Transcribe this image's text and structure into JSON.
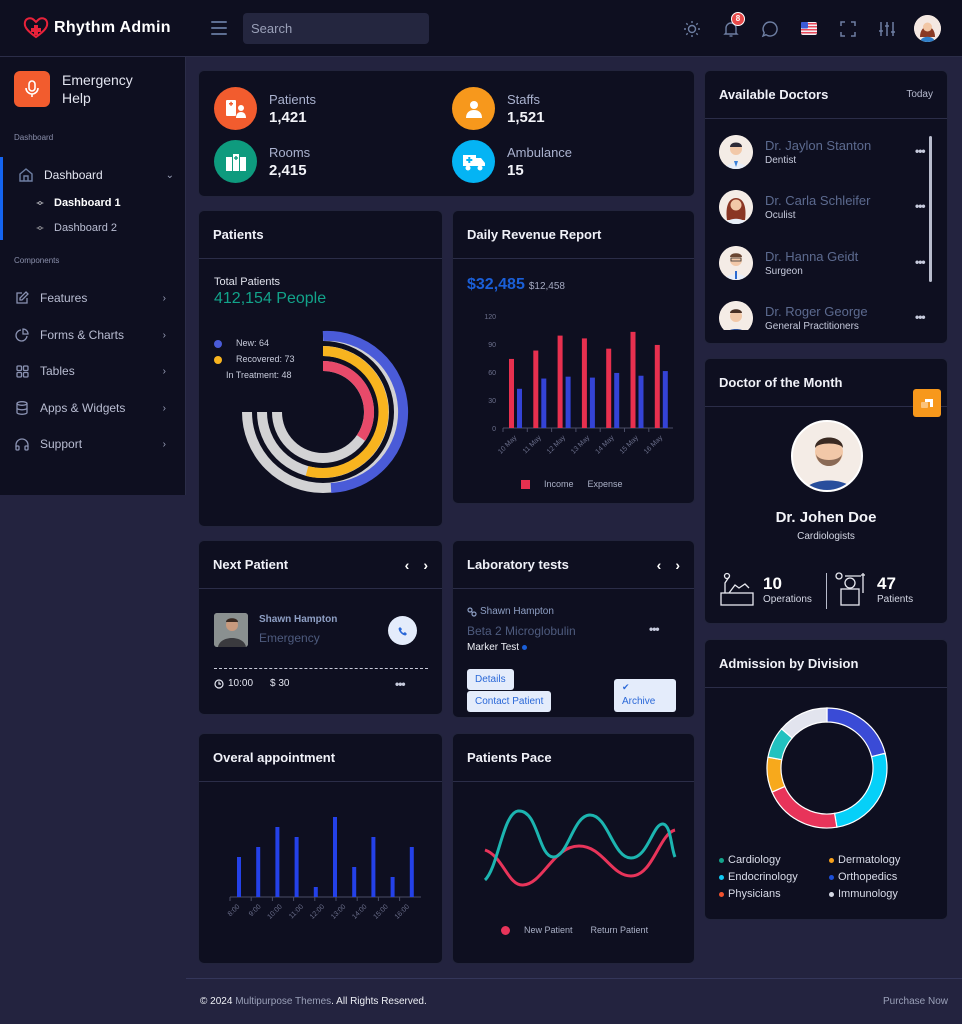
{
  "header": {
    "app_title": "Rhythm Admin",
    "search_placeholder": "Search",
    "notification_count": "8",
    "icons": [
      "sun-icon",
      "bell-icon",
      "chat-icon",
      "us-flag-icon",
      "fullscreen-icon",
      "sliders-icon",
      "user-avatar"
    ]
  },
  "sidebar": {
    "emergency_label": "Emergency Help",
    "emergency_line1": "Emergency",
    "emergency_line2": "Help",
    "section_dashboard": "Dashboard",
    "section_components": "Components",
    "dashboard_label": "Dashboard",
    "sub_items": [
      "Dashboard 1",
      "Dashboard 2"
    ],
    "items": [
      {
        "label": "Features",
        "icon": "edit-icon"
      },
      {
        "label": "Forms & Charts",
        "icon": "pie-chart-icon"
      },
      {
        "label": "Tables",
        "icon": "grid-icon"
      },
      {
        "label": "Apps & Widgets",
        "icon": "database-icon"
      },
      {
        "label": "Support",
        "icon": "headphones-icon"
      }
    ]
  },
  "stats": [
    {
      "label": "Patients",
      "value": "1,421",
      "color": "#f25c2e"
    },
    {
      "label": "Staffs",
      "value": "1,521",
      "color": "#f7981c"
    },
    {
      "label": "Rooms",
      "value": "2,415",
      "color": "#0e9b7e"
    },
    {
      "label": "Ambulance",
      "value": "15",
      "color": "#04b4f4"
    }
  ],
  "patients_card": {
    "title": "Patients",
    "total_label": "Total Patients",
    "total_value": "412,154 People",
    "legend": [
      {
        "label": "New: 64",
        "color": "#4a5bd8"
      },
      {
        "label": "Recovered: 73",
        "color": "#f8b41f"
      },
      {
        "label": "In Treatment: 48",
        "color": "#e84a6a"
      }
    ]
  },
  "revenue_card": {
    "title": "Daily Revenue Report",
    "main_value": "$32,485",
    "sub_value": "$12,458",
    "legend_income": "Income",
    "legend_expense": "Expense"
  },
  "doctors_card": {
    "title": "Available Doctors",
    "filter": "Today",
    "doctors": [
      {
        "name": "Dr. Jaylon Stanton",
        "role": "Dentist"
      },
      {
        "name": "Dr. Carla Schleifer",
        "role": "Oculist"
      },
      {
        "name": "Dr. Hanna Geidt",
        "role": "Surgeon"
      },
      {
        "name": "Dr. Roger George",
        "role": "General Practitioners"
      }
    ]
  },
  "doctor_month": {
    "title": "Doctor of the Month",
    "name": "Dr. Johen Doe",
    "specialty": "Cardiologists",
    "operations_value": "10",
    "operations_label": "Operations",
    "patients_value": "47",
    "patients_label": "Patients"
  },
  "next_patient": {
    "title": "Next Patient",
    "name": "Shawn Hampton",
    "type": "Emergency",
    "time": "10:00",
    "price": "$ 30"
  },
  "lab_tests": {
    "title": "Laboratory tests",
    "patient": "Shawn Hampton",
    "test_name": "Beta 2 Microglobulin",
    "test_type": "Marker Test",
    "btn_details": "Details",
    "btn_contact": "Contact Patient",
    "btn_archive": "Archive"
  },
  "appointment_card": {
    "title": "Overal appointment"
  },
  "pace_card": {
    "title": "Patients Pace",
    "legend_new": "New Patient",
    "legend_return": "Return Patient"
  },
  "admission_card": {
    "title": "Admission by Division",
    "legend": [
      {
        "label": "Cardiology",
        "color": "#14a38b"
      },
      {
        "label": "Dermatology",
        "color": "#f7a11c"
      },
      {
        "label": "Endocrinology",
        "color": "#10c8f2"
      },
      {
        "label": "Orthopedics",
        "color": "#1c4fd8"
      },
      {
        "label": "Physicians",
        "color": "#f2522e"
      },
      {
        "label": "Immunology",
        "color": "#d5d8e4"
      }
    ]
  },
  "footer": {
    "copyright_prefix": "© 2024",
    "company": "Multipurpose Themes",
    "rights": ". All Rights Reserved.",
    "purchase": "Purchase Now"
  },
  "chart_data": [
    {
      "type": "bar",
      "title": "Daily Revenue Report",
      "categories": [
        "10 May",
        "11 May",
        "12 May",
        "13 May",
        "14 May",
        "15 May",
        "16 May"
      ],
      "series": [
        {
          "name": "Income",
          "values": [
            74,
            83,
            99,
            96,
            85,
            103,
            89
          ],
          "color": "#e8304f"
        },
        {
          "name": "Expense",
          "values": [
            42,
            53,
            55,
            54,
            59,
            56,
            61
          ],
          "color": "#3443d6"
        }
      ],
      "ylim": [
        0,
        120
      ],
      "yticks": [
        0,
        30,
        60,
        90,
        120
      ],
      "legend_position": "bottom"
    },
    {
      "type": "bar",
      "title": "Overal appointment",
      "categories": [
        "8:00",
        "9:00",
        "10:00",
        "11:00",
        "12:00",
        "13:00",
        "14:00",
        "15:00",
        "16:00"
      ],
      "values": [
        40,
        50,
        70,
        60,
        10,
        80,
        30,
        60,
        20,
        50
      ],
      "note": "10 bars across 9 tick labels",
      "color": "#2441e8"
    },
    {
      "type": "pie",
      "title": "Admission by Division",
      "categories": [
        "Orthopedics",
        "Endocrinology",
        "Physicians",
        "Dermatology",
        "Cardiology",
        "Immunology"
      ],
      "values": [
        20,
        25,
        20,
        9,
        8,
        13
      ],
      "colors": [
        "#3a4bd6",
        "#06d0f8",
        "#e8345a",
        "#f7a91c",
        "#22c2c0",
        "#e2e4ee"
      ]
    },
    {
      "type": "pie",
      "title": "Patients",
      "categories": [
        "New",
        "Recovered",
        "In Treatment"
      ],
      "values": [
        64,
        73,
        48
      ],
      "colors": [
        "#4a5bd8",
        "#f8b41f",
        "#e84a6a"
      ]
    },
    {
      "type": "line",
      "title": "Patients Pace",
      "series": [
        {
          "name": "New Patient",
          "color": "#e8345a",
          "values": [
            55,
            30,
            50,
            32,
            60,
            20,
            90
          ]
        },
        {
          "name": "Return Patient",
          "color": "#1cb5b0",
          "values": [
            10,
            70,
            35,
            65,
            30,
            55,
            30
          ]
        }
      ],
      "legend_position": "bottom"
    }
  ]
}
